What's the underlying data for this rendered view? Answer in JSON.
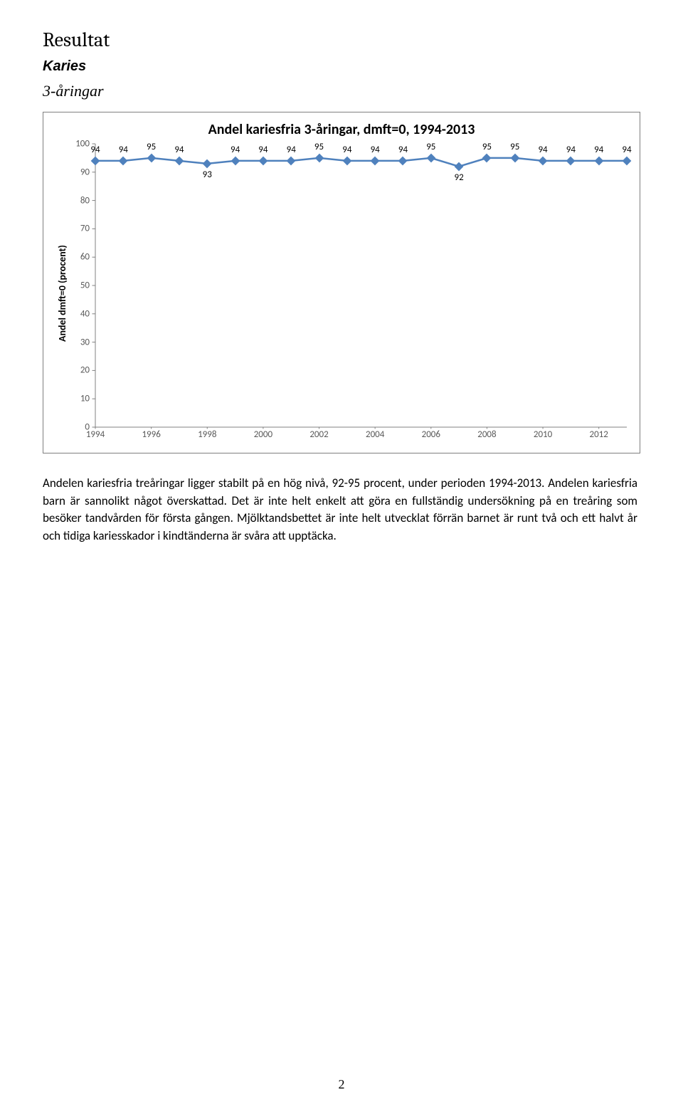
{
  "headings": {
    "h1": "Resultat",
    "h2": "Karies",
    "h3": "3-åringar"
  },
  "chart": {
    "type": "line",
    "title": "Andel kariesfria 3-åringar, dmft=0, 1994-2013",
    "y_axis_label": "Andel dmft=0 (procent)",
    "years": [
      1994,
      1995,
      1996,
      1997,
      1998,
      1999,
      2000,
      2001,
      2002,
      2003,
      2004,
      2005,
      2006,
      2007,
      2008,
      2009,
      2010,
      2011,
      2012,
      2013
    ],
    "values": [
      94,
      94,
      95,
      94,
      93,
      94,
      94,
      94,
      95,
      94,
      94,
      94,
      95,
      92,
      95,
      95,
      94,
      94,
      94,
      94
    ],
    "value_label_offsets": [
      1,
      1,
      1,
      1,
      -1,
      1,
      1,
      1,
      1,
      1,
      1,
      1,
      1,
      -1,
      1,
      1,
      1,
      1,
      1,
      1
    ],
    "x_tick_labels": [
      "1994",
      "1996",
      "1998",
      "2000",
      "2002",
      "2004",
      "2006",
      "2008",
      "2010",
      "2012"
    ],
    "x_tick_indices": [
      0,
      2,
      4,
      6,
      8,
      10,
      12,
      14,
      16,
      18
    ],
    "ylim": [
      0,
      100
    ],
    "y_tick_step": 10,
    "line_color": "#4f81bd",
    "marker_color": "#4f81bd",
    "marker_size": 9,
    "line_width": 2.5,
    "tick_color": "#808080",
    "axis_color": "#808080",
    "label_text_color": "#000000",
    "tick_text_color": "#595959",
    "title_fontsize": 20,
    "label_fontsize": 14,
    "tick_fontsize": 13,
    "data_label_fontsize": 13,
    "background_color": "#ffffff"
  },
  "paragraph": "Andelen kariesfria treåringar ligger stabilt på en hög nivå, 92-95 procent, under perioden 1994-2013. Andelen kariesfria barn är sannolikt något överskattad. Det är inte helt enkelt att göra en fullständig undersökning på en treåring som besöker tandvården för första gången. Mjölktandsbettet är inte helt utvecklat förrän barnet är runt två och ett halvt år och tidiga kariesskador i kindtänderna är svåra att upptäcka.",
  "page_number": "2"
}
